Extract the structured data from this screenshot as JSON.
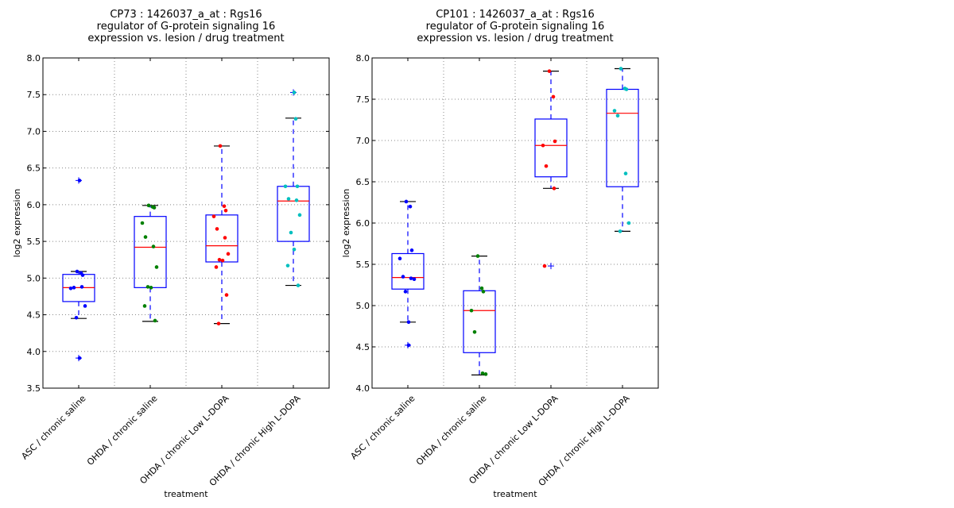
{
  "chart_data": [
    {
      "type": "box",
      "title": [
        "CP73 : 1426037_a_at : Rgs16",
        "regulator of G-protein signaling 16",
        "expression vs. lesion / drug treatment"
      ],
      "xlabel": "treatment",
      "ylabel": "log2 expression",
      "ylim": [
        3.5,
        8.0
      ],
      "yticks": [
        "3.5",
        "4.0",
        "4.5",
        "5.0",
        "5.5",
        "6.0",
        "6.5",
        "7.0",
        "7.5",
        "8.0"
      ],
      "grid": true,
      "categories": [
        "ASC / chronic saline",
        "OHDA / chronic saline",
        "OHDA / chronic Low L-DOPA",
        "OHDA / chronic High L-DOPA"
      ],
      "colors": [
        "#0000ff",
        "#008000",
        "#ff0000",
        "#00bfbf"
      ],
      "boxes": [
        {
          "q1": 4.68,
          "median": 4.87,
          "q3": 5.05,
          "whislo": 4.45,
          "whishi": 5.09,
          "fliers": [
            6.33,
            3.91
          ],
          "points": [
            5.09,
            5.07,
            5.04,
            4.86,
            4.87,
            4.88,
            4.62,
            4.46,
            6.33,
            3.91
          ]
        },
        {
          "q1": 4.87,
          "median": 5.42,
          "q3": 5.84,
          "whislo": 4.41,
          "whishi": 5.99,
          "fliers": [],
          "points": [
            5.99,
            5.97,
            5.96,
            5.75,
            5.56,
            5.43,
            5.15,
            4.88,
            4.87,
            4.62,
            4.42
          ]
        },
        {
          "q1": 5.22,
          "median": 5.44,
          "q3": 5.86,
          "whislo": 4.38,
          "whishi": 6.8,
          "fliers": [],
          "points": [
            6.8,
            5.98,
            5.92,
            5.84,
            5.67,
            5.55,
            5.33,
            5.25,
            5.24,
            5.15,
            4.77,
            4.38
          ]
        },
        {
          "q1": 5.5,
          "median": 6.05,
          "q3": 6.25,
          "whislo": 4.9,
          "whishi": 7.18,
          "fliers": [
            7.53
          ],
          "points": [
            7.53,
            7.17,
            6.25,
            6.25,
            6.08,
            6.06,
            5.86,
            5.62,
            5.39,
            5.17,
            4.9
          ]
        }
      ]
    },
    {
      "type": "box",
      "title": [
        "CP101 : 1426037_a_at : Rgs16",
        "regulator of G-protein signaling 16",
        "expression vs. lesion / drug treatment"
      ],
      "xlabel": "treatment",
      "ylabel": "log2 expression",
      "ylim": [
        4.0,
        8.0
      ],
      "yticks": [
        "4.0",
        "4.5",
        "5.0",
        "5.5",
        "6.0",
        "6.5",
        "7.0",
        "7.5",
        "8.0"
      ],
      "grid": true,
      "categories": [
        "ASC / chronic saline",
        "OHDA / chronic saline",
        "OHDA / chronic Low L-DOPA",
        "OHDA / chronic High L-DOPA"
      ],
      "colors": [
        "#0000ff",
        "#008000",
        "#ff0000",
        "#00bfbf"
      ],
      "boxes": [
        {
          "q1": 5.2,
          "median": 5.34,
          "q3": 5.63,
          "whislo": 4.8,
          "whishi": 6.26,
          "fliers": [
            4.52
          ],
          "points": [
            6.26,
            6.2,
            5.67,
            5.57,
            5.35,
            5.33,
            5.32,
            5.17,
            4.8,
            4.52
          ]
        },
        {
          "q1": 4.43,
          "median": 4.94,
          "q3": 5.18,
          "whislo": 4.16,
          "whishi": 5.6,
          "fliers": [],
          "points": [
            5.6,
            5.21,
            5.17,
            4.94,
            4.68,
            4.18,
            4.17
          ]
        },
        {
          "q1": 6.56,
          "median": 6.94,
          "q3": 7.26,
          "whislo": 6.42,
          "whishi": 7.84,
          "fliers": [
            5.48
          ],
          "points": [
            7.84,
            7.53,
            6.99,
            6.94,
            6.69,
            6.42,
            5.48
          ]
        },
        {
          "q1": 6.44,
          "median": 7.33,
          "q3": 7.62,
          "whislo": 5.9,
          "whishi": 7.87,
          "fliers": [],
          "points": [
            7.87,
            7.63,
            7.62,
            7.36,
            7.3,
            6.6,
            6.0,
            5.9
          ]
        }
      ]
    }
  ]
}
